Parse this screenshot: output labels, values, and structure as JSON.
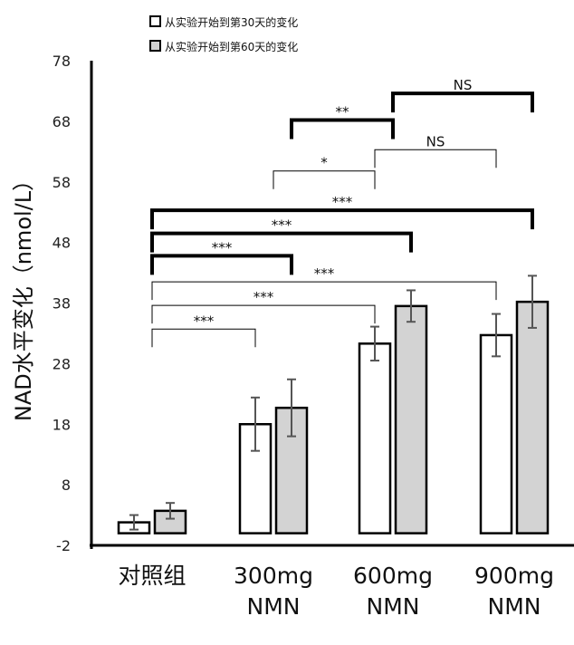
{
  "chart_data": {
    "type": "bar",
    "ylabel": "NAD水平变化（nmol/L）",
    "ylim": [
      -2,
      78
    ],
    "yticks": [
      -2,
      8,
      18,
      28,
      38,
      48,
      58,
      68,
      78
    ],
    "categories": [
      {
        "line1": "对照组",
        "line2": ""
      },
      {
        "line1": "300mg",
        "line2": "NMN"
      },
      {
        "line1": "600mg",
        "line2": "NMN"
      },
      {
        "line1": "900mg",
        "line2": "NMN"
      }
    ],
    "series": [
      {
        "name": "从实验开始到第30天的变化",
        "color": "#ffffff",
        "values": [
          1.8,
          18,
          31.3,
          32.7
        ],
        "errors": [
          1.2,
          4.4,
          2.8,
          3.5
        ]
      },
      {
        "name": "从实验开始到第60天的变化",
        "color": "#d3d3d3",
        "values": [
          3.7,
          20.7,
          37.5,
          38.2
        ],
        "errors": [
          1.3,
          4.7,
          2.6,
          4.3
        ]
      }
    ],
    "legend_position": "top",
    "significance": [
      {
        "label": "***",
        "from": [
          0,
          "center"
        ],
        "to": [
          1,
          0
        ],
        "y": 33.7,
        "bold": false
      },
      {
        "label": "***",
        "from": [
          0,
          "center"
        ],
        "to": [
          2,
          0
        ],
        "y": 37.6,
        "bold": false
      },
      {
        "label": "***",
        "from": [
          0,
          "center"
        ],
        "to": [
          3,
          0
        ],
        "y": 41.5,
        "bold": false
      },
      {
        "label": "***",
        "from": [
          0,
          "center"
        ],
        "to": [
          1,
          1
        ],
        "y": 45.8,
        "bold": true
      },
      {
        "label": "***",
        "from": [
          0,
          "center"
        ],
        "to": [
          2,
          1
        ],
        "y": 49.5,
        "bold": true
      },
      {
        "label": "***",
        "from": [
          0,
          "center"
        ],
        "to": [
          3,
          1
        ],
        "y": 53.3,
        "bold": true
      },
      {
        "label": "*",
        "from": [
          1,
          "center"
        ],
        "to": [
          2,
          0
        ],
        "y": 59.8,
        "bold": false
      },
      {
        "label": "NS",
        "from": [
          2,
          0
        ],
        "to": [
          3,
          0
        ],
        "y": 63.3,
        "bold": false
      },
      {
        "label": "**",
        "from": [
          1,
          1
        ],
        "to": [
          2,
          "center"
        ],
        "y": 68.2,
        "bold": true
      },
      {
        "label": "NS",
        "from": [
          2,
          "center"
        ],
        "to": [
          3,
          1
        ],
        "y": 72.6,
        "bold": true
      }
    ]
  }
}
